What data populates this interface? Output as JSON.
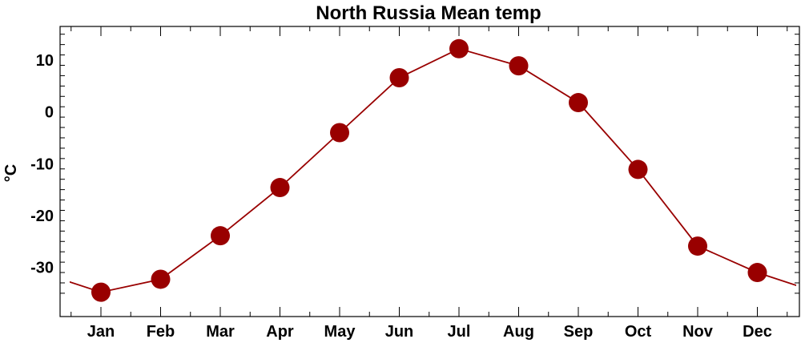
{
  "chart_data": {
    "type": "line",
    "title": "North Russia Mean temp",
    "xlabel": "",
    "ylabel": "°C",
    "categories": [
      "Jan",
      "Feb",
      "Mar",
      "Apr",
      "May",
      "Jun",
      "Jul",
      "Aug",
      "Sep",
      "Oct",
      "Nov",
      "Dec"
    ],
    "series": [
      {
        "values": [
          -34.8,
          -32.3,
          -23.9,
          -14.6,
          -4.0,
          6.6,
          12.2,
          8.9,
          1.8,
          -11.1,
          -25.9,
          -31.0
        ],
        "color": "#990000"
      }
    ],
    "ylim": [
      -39.5,
      16.5
    ],
    "yticks": [
      10,
      0,
      -10,
      -20,
      -30
    ],
    "ytick_labels": [
      "10",
      "0",
      "-10",
      "-20",
      "-30"
    ],
    "markers": true,
    "grid": false,
    "legend": "none"
  }
}
